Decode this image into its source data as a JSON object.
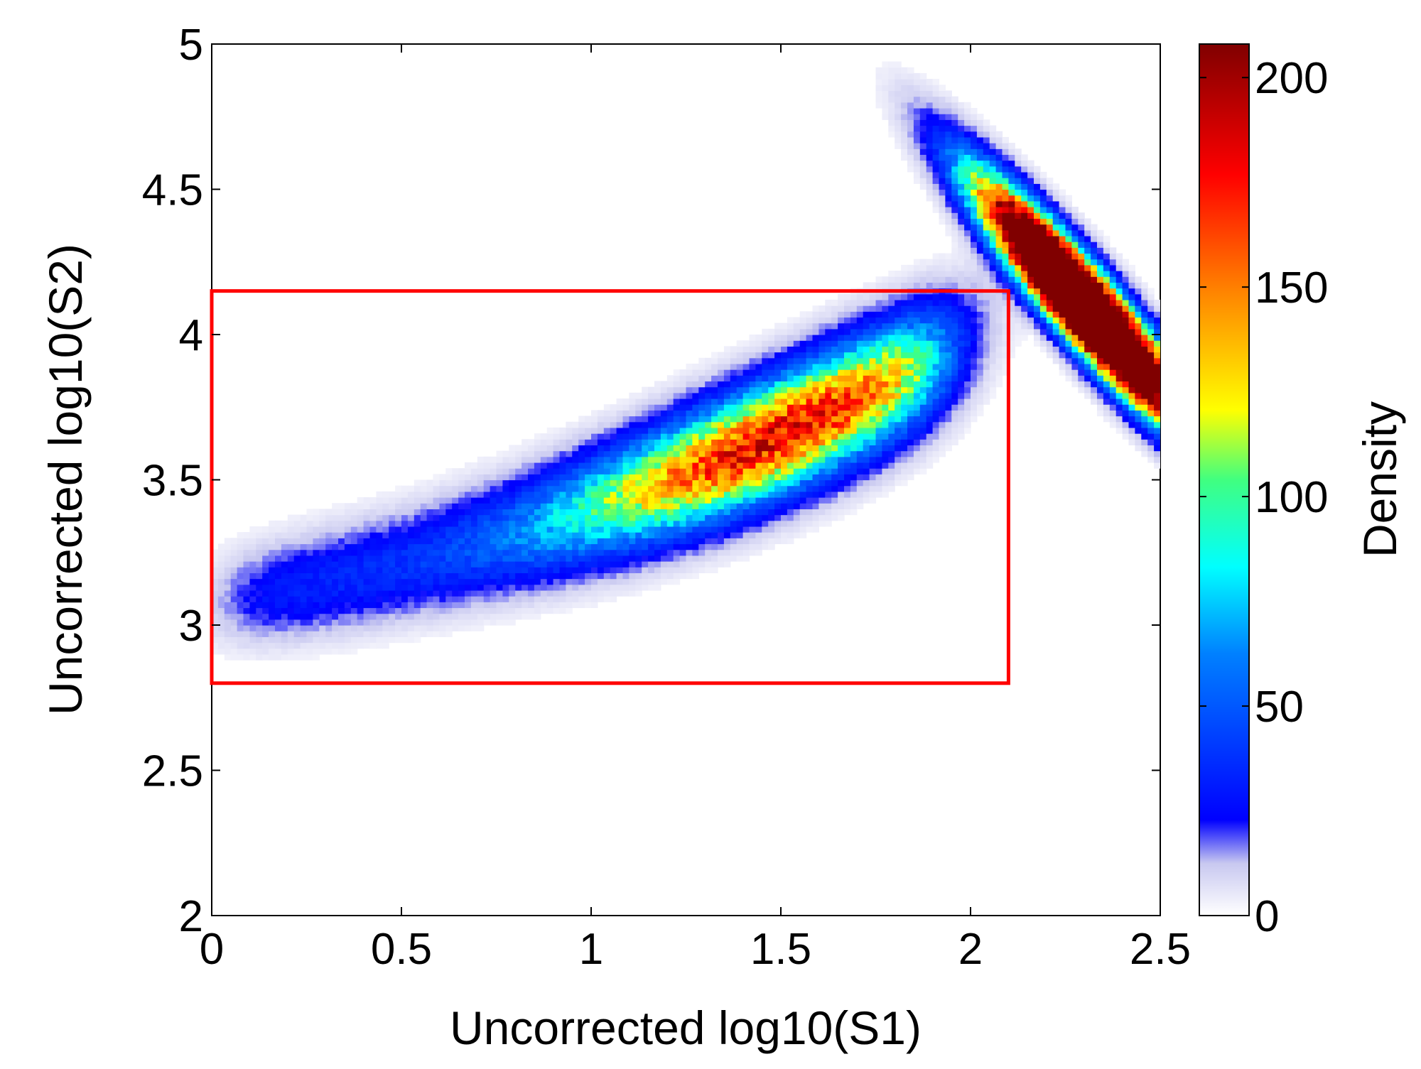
{
  "chart_data": {
    "type": "heatmap",
    "title": "",
    "xlabel": "Uncorrected log10(S1)",
    "ylabel": "Uncorrected log10(S2)",
    "xlim": [
      0,
      2.5
    ],
    "ylim": [
      2,
      5
    ],
    "x_ticks": [
      "0",
      "0.5",
      "1",
      "1.5",
      "2",
      "2.5"
    ],
    "y_ticks": [
      "2",
      "2.5",
      "3",
      "3.5",
      "4",
      "4.5",
      "5"
    ],
    "grid": false,
    "colorbar": {
      "label": "Density",
      "range": [
        0,
        208
      ],
      "ticks": [
        "0",
        "50",
        "100",
        "150",
        "200"
      ],
      "colormap": "jet",
      "low_color": "#ffffff",
      "high_color": "#800000"
    },
    "clusters": [
      {
        "name": "",
        "shape": "elongated band rising to the right",
        "center": [
          1.5,
          3.55
        ],
        "x_extent": [
          0.0,
          2.05
        ],
        "y_extent": [
          2.85,
          4.05
        ],
        "peak_density": 180
      },
      {
        "name": "",
        "shape": "narrow band falling to the right",
        "center": [
          2.3,
          4.1
        ],
        "x_extent": [
          1.9,
          2.5
        ],
        "y_extent": [
          3.7,
          4.65
        ],
        "peak_density": 208
      }
    ],
    "selection_box": {
      "color": "#ff0000",
      "x": [
        0,
        2.1
      ],
      "y": [
        2.8,
        4.15
      ]
    }
  }
}
